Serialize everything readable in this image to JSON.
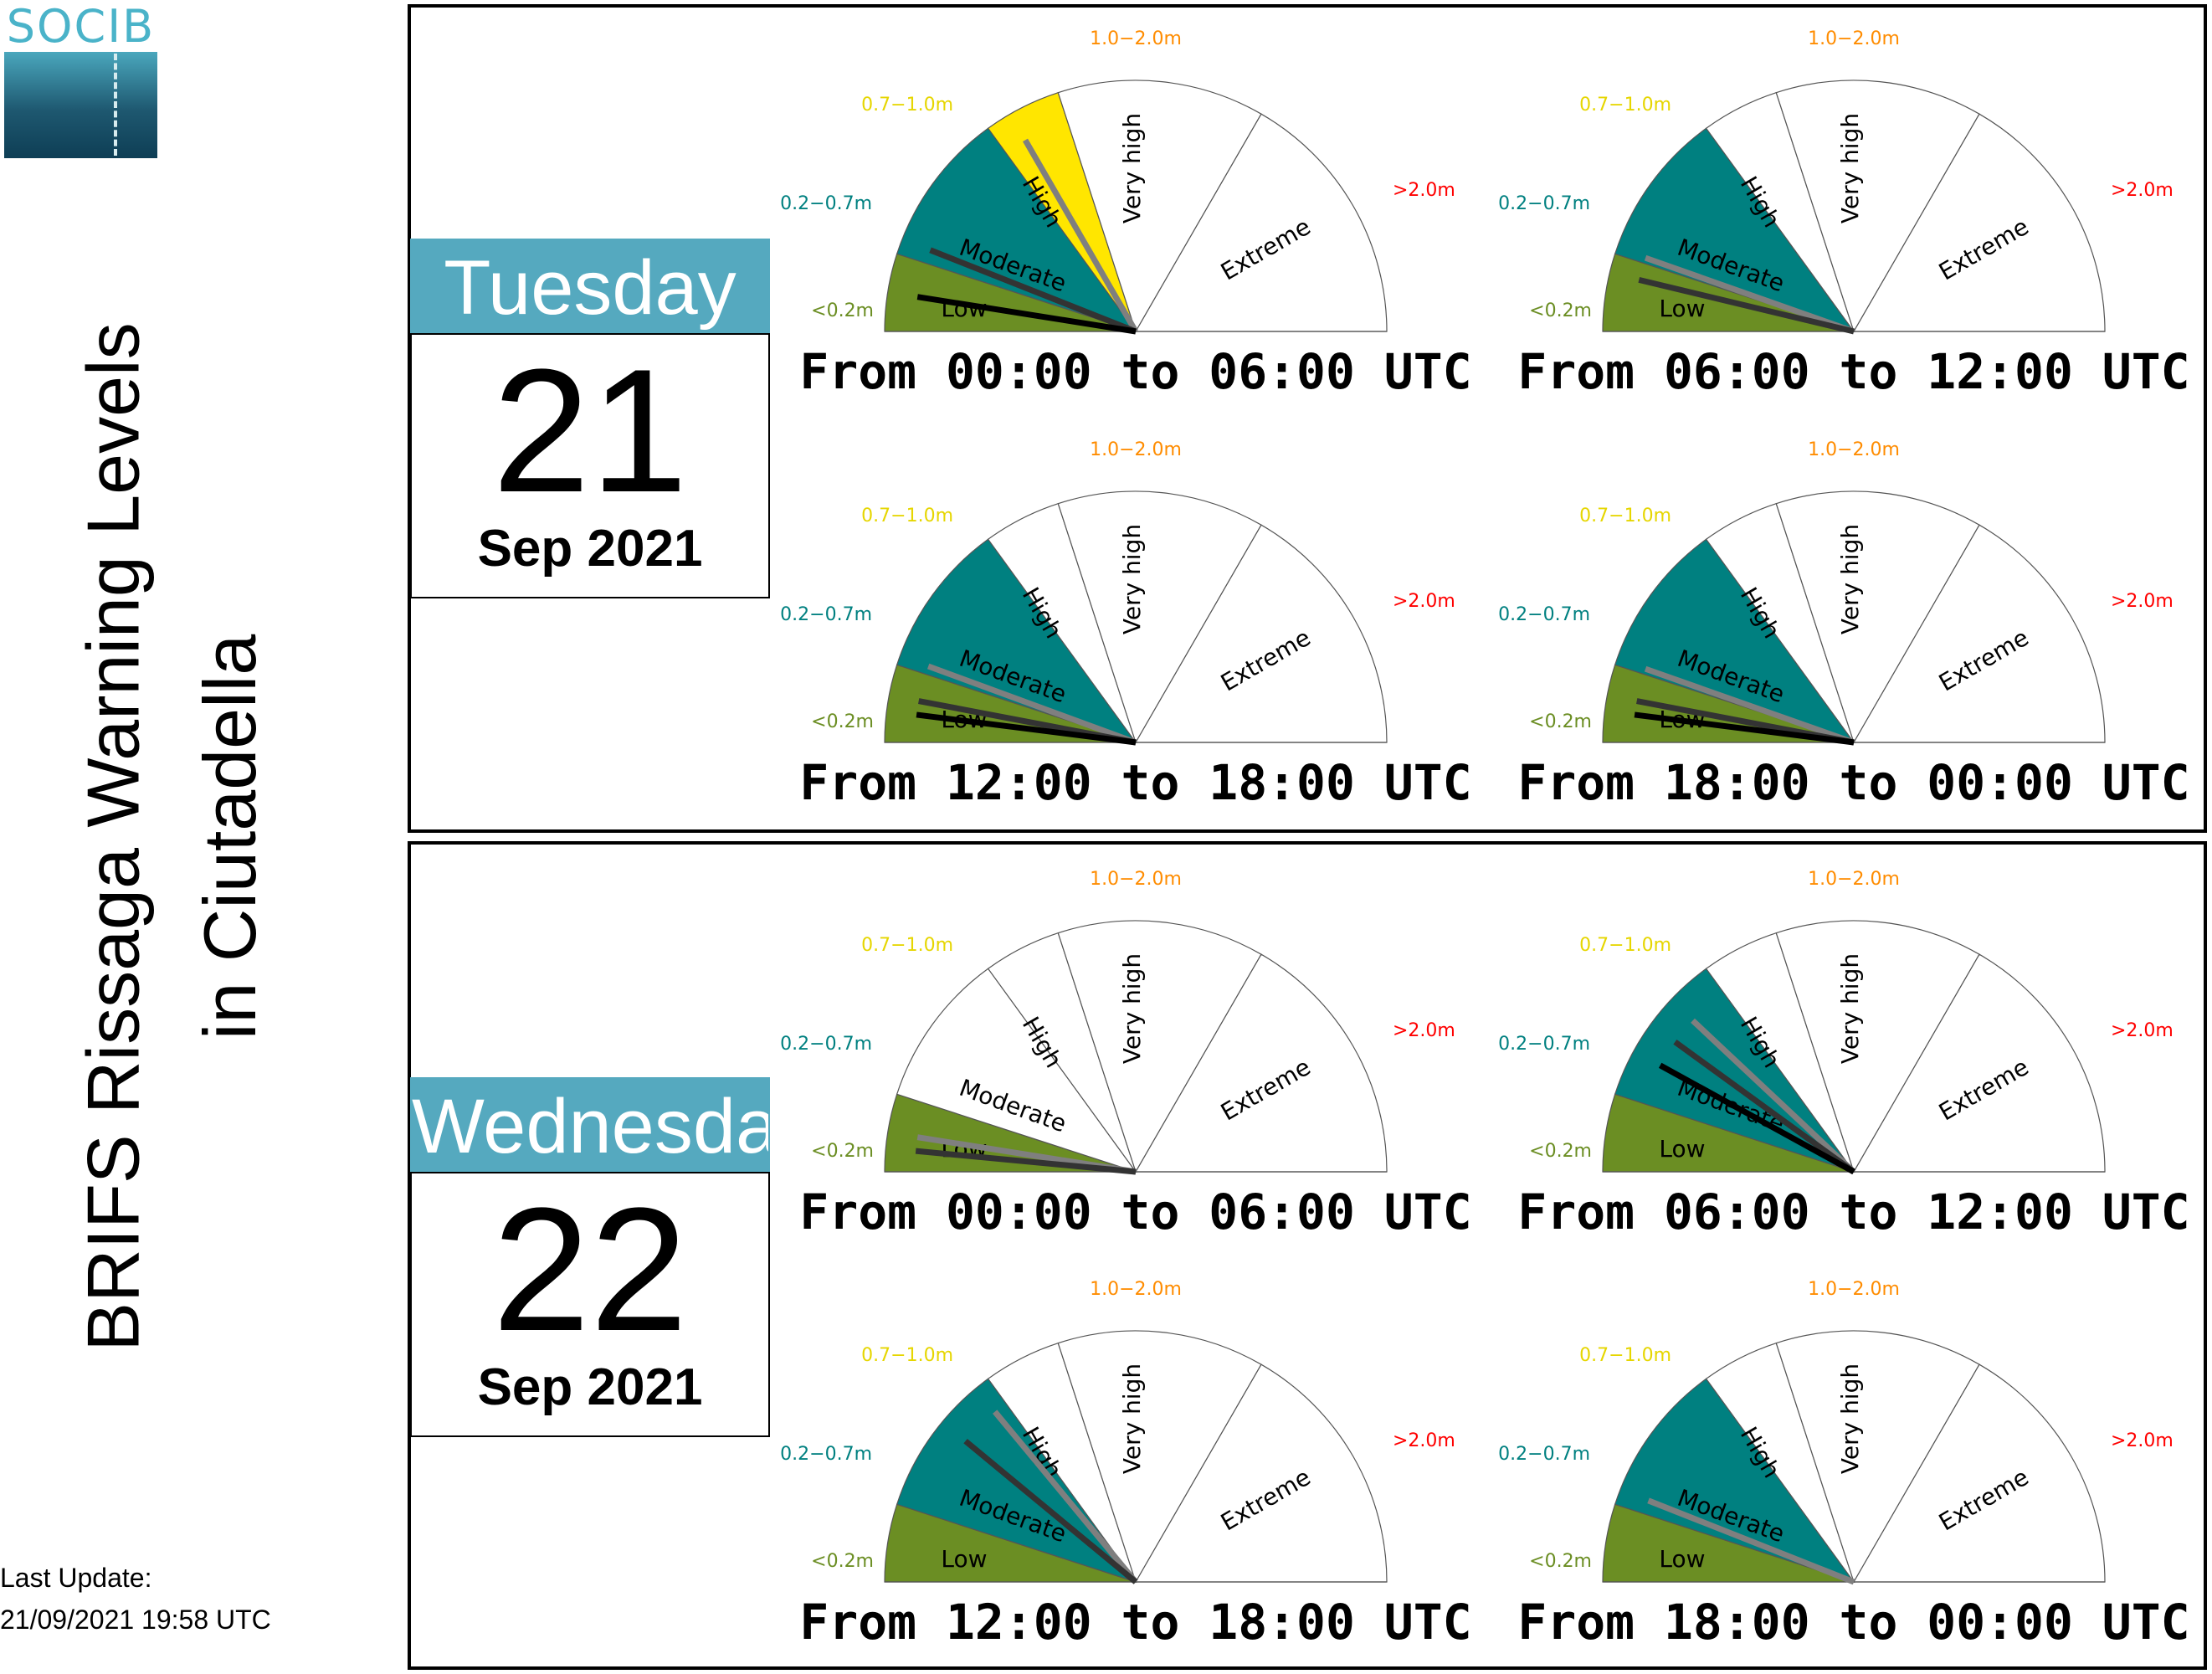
{
  "logo": {
    "text": "SOCIB"
  },
  "title": {
    "line1": "BRIFS Rissaga Warning Levels",
    "line2": "in Ciutadella"
  },
  "last_update": {
    "label": "Last Update:",
    "value": "21/09/2021 19:58 UTC"
  },
  "colors": {
    "low": "#6b8e23",
    "moderate": "#008080",
    "high": "#ffe600",
    "very_high": "#ff8c00",
    "extreme": "#ff0000",
    "calendar_header": "#55a9bf"
  },
  "legend": {
    "ranges": [
      "<0.2m",
      "0.2−0.7m",
      "0.7−1.0m",
      "1.0−2.0m",
      ">2.0m"
    ],
    "categories": [
      "Low",
      "Moderate",
      "High",
      "Very high",
      "Extreme"
    ]
  },
  "days": [
    {
      "weekday": "Tuesday",
      "day": "21",
      "month": "Sep 2021"
    },
    {
      "weekday": "Wednesday",
      "day": "22",
      "month": "Sep 2021"
    }
  ],
  "chart_data": [
    {
      "type": "gauge",
      "title": "From 00:00 to 06:00 UTC",
      "day": "21",
      "level": "High",
      "needles_m": [
        0.8,
        0.25,
        0.1
      ]
    },
    {
      "type": "gauge",
      "title": "From 06:00 to 12:00 UTC",
      "day": "21",
      "level": "Moderate",
      "needles_m": [
        0.22,
        0.15
      ]
    },
    {
      "type": "gauge",
      "title": "From 12:00 to 18:00 UTC",
      "day": "21",
      "level": "Moderate",
      "needles_m": [
        0.23,
        0.12,
        0.08
      ]
    },
    {
      "type": "gauge",
      "title": "From 18:00 to 00:00 UTC",
      "day": "21",
      "level": "Moderate",
      "needles_m": [
        0.22,
        0.12,
        0.08
      ]
    },
    {
      "type": "gauge",
      "title": "From 00:00 to 06:00 UTC",
      "day": "22",
      "level": "Low",
      "needles_m": [
        0.1,
        0.06
      ]
    },
    {
      "type": "gauge",
      "title": "From 06:00 to 12:00 UTC",
      "day": "22",
      "level": "Moderate",
      "needles_m": [
        0.55,
        0.45,
        0.35
      ]
    },
    {
      "type": "gauge",
      "title": "From 12:00 to 18:00 UTC",
      "day": "22",
      "level": "Moderate",
      "needles_m": [
        0.65,
        0.5
      ]
    },
    {
      "type": "gauge",
      "title": "From 18:00 to 00:00 UTC",
      "day": "22",
      "level": "Moderate",
      "needles_m": [
        0.25
      ]
    }
  ]
}
